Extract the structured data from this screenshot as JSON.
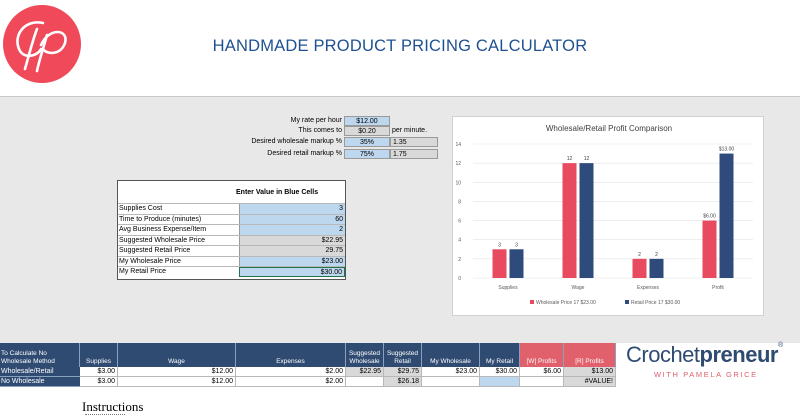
{
  "header": {
    "logo_text": "Cp",
    "title": "HANDMADE PRODUCT PRICING CALCULATOR",
    "brand_color": "#f04a5a",
    "title_color": "#1f5190"
  },
  "rates": {
    "rate_label": "My rate per hour",
    "rate_value": "$12.00",
    "comes_label": "This comes to",
    "comes_value": "$0.20",
    "per_minute": "per minute.",
    "wholesale_label": "Desired wholesale markup %",
    "wholesale_pct": "35%",
    "wholesale_mult": "1.35",
    "retail_label": "Desired retail markup %",
    "retail_pct": "75%",
    "retail_mult": "1.75"
  },
  "inputs": {
    "heading": "Enter Value in Blue Cells",
    "rows": [
      {
        "label": "Supplies Cost",
        "value": "3"
      },
      {
        "label": "Time to Produce (minutes)",
        "value": "60"
      },
      {
        "label": "Avg Business Expense/Item",
        "value": "2"
      },
      {
        "label": "Suggested Wholesale Price",
        "value": "$22.95"
      },
      {
        "label": "Suggested Retail Price",
        "value": "29.75"
      },
      {
        "label": "My Wholesale Price",
        "value": "$23.00"
      },
      {
        "label": "My Retail Price",
        "value": "$30.00"
      }
    ]
  },
  "chart_data": {
    "type": "bar",
    "title": "Wholesale/Retail Profit Comparison",
    "categories": [
      "Supplies",
      "Wage",
      "Expenses",
      "Profit"
    ],
    "series": [
      {
        "name": "Wholesale  Price 17 $23.00",
        "color": "#e84a5f",
        "values": [
          3,
          12,
          2,
          6
        ]
      },
      {
        "name": "Retail Price 17 $30.00",
        "color": "#2f4b7c",
        "values": [
          3,
          12,
          2,
          13
        ]
      }
    ],
    "data_labels": [
      [
        "3",
        "12",
        "2",
        "$6.00"
      ],
      [
        "3",
        "12",
        "2",
        "$13.00"
      ]
    ],
    "yticks": [
      0,
      2,
      4,
      6,
      8,
      10,
      12,
      14
    ],
    "ylim": [
      0,
      14
    ],
    "legend": "bottom"
  },
  "bottom_table": {
    "headers": [
      "To Calculate No Wholesale Method",
      "Supplies",
      "Wage",
      "Expenses",
      "Suggested Wholesale",
      "Suggested Retail",
      "My Wholesale",
      "My Retail",
      "[W] Profits",
      "[R] Profits"
    ],
    "rows": [
      {
        "label": "Wholesale/Retail",
        "cells": [
          "$3.00",
          "$12.00",
          "$2.00",
          "$22.95",
          "$29.75",
          "$23.00",
          "$30.00",
          "$6.00",
          "$13.00"
        ]
      },
      {
        "label": "No Wholesale",
        "cells": [
          "$3.00",
          "$12.00",
          "$2.00",
          "",
          "$26.18",
          "",
          "",
          "",
          "#VALUE!"
        ]
      }
    ]
  },
  "brand": {
    "name_light": "Crochet",
    "name_bold": "preneur",
    "reg": "®",
    "subtitle": "WITH PAMELA GRICE"
  },
  "footer": {
    "instructions": "Instructions"
  }
}
